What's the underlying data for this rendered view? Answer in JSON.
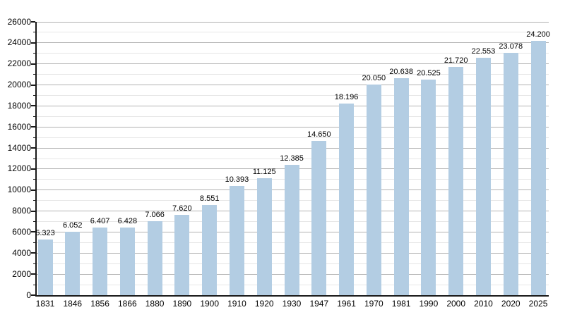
{
  "chart_data": {
    "type": "bar",
    "title": "",
    "xlabel": "",
    "ylabel": "",
    "categories": [
      "1831",
      "1846",
      "1856",
      "1866",
      "1880",
      "1890",
      "1900",
      "1910",
      "1920",
      "1930",
      "1947",
      "1961",
      "1970",
      "1981",
      "1990",
      "2000",
      "2010",
      "2020",
      "2025"
    ],
    "values": [
      5323,
      6052,
      6407,
      6428,
      7066,
      7620,
      8551,
      10393,
      11125,
      12385,
      14650,
      18196,
      20050,
      20638,
      20525,
      21720,
      22553,
      23078,
      24200
    ],
    "value_labels": [
      "5.323",
      "6.052",
      "6.407",
      "6.428",
      "7.066",
      "7.620",
      "8.551",
      "10.393",
      "11.125",
      "12.385",
      "14.650",
      "18.196",
      "20.050",
      "20.638",
      "20.525",
      "21.720",
      "22.553",
      "23.078",
      "24.200"
    ],
    "ylim": [
      0,
      26000
    ],
    "ytick_step": 2000,
    "ytick_minor_step": 1000,
    "ytick_labels": [
      "0",
      "2000",
      "4000",
      "6000",
      "8000",
      "10000",
      "12000",
      "14000",
      "16000",
      "18000",
      "20000",
      "22000",
      "24000",
      "26000"
    ],
    "grid": "horizontal major and minor",
    "legend": "none",
    "colors": {
      "bar_fill": "#b3cde3",
      "major_grid": "#b2b2b2",
      "minor_grid": "#e6e6e6",
      "axis_line": "#1a1a1a",
      "label_text": "#000000",
      "background": "#ffffff"
    }
  }
}
